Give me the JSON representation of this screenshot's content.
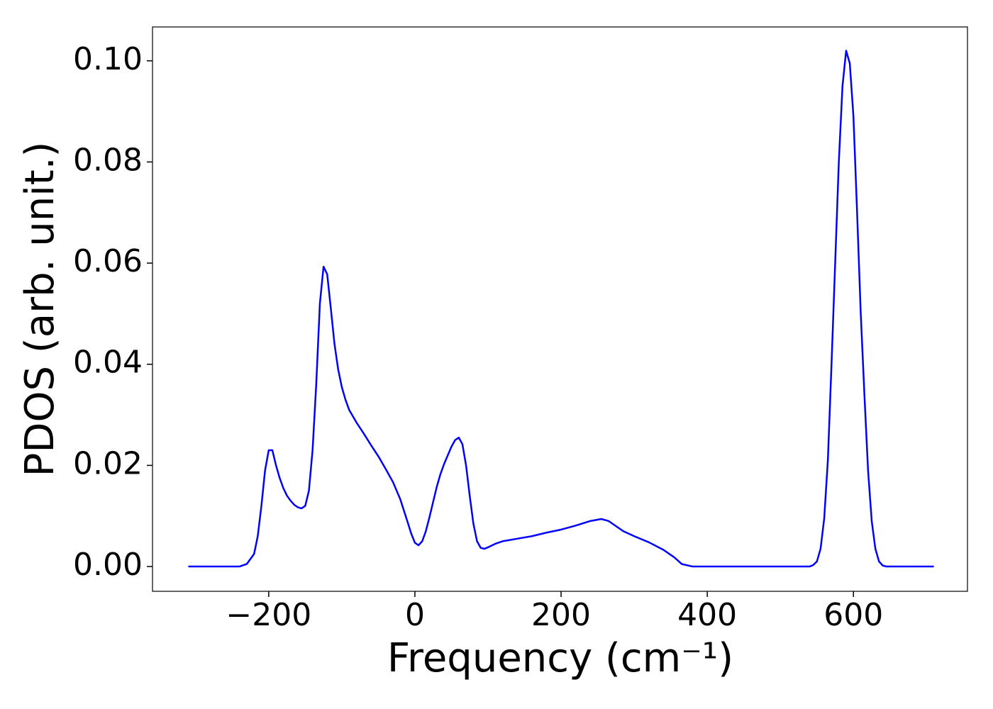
{
  "chart_data": {
    "type": "line",
    "xlabel": "Frequency (cm⁻¹)",
    "ylabel": "PDOS (arb. unit.)",
    "x": [
      -310,
      -240,
      -230,
      -220,
      -215,
      -210,
      -205,
      -200,
      -195,
      -190,
      -185,
      -180,
      -175,
      -170,
      -165,
      -160,
      -155,
      -150,
      -145,
      -140,
      -135,
      -130,
      -125,
      -120,
      -115,
      -110,
      -105,
      -100,
      -95,
      -90,
      -80,
      -70,
      -60,
      -50,
      -40,
      -30,
      -20,
      -10,
      -5,
      0,
      5,
      10,
      15,
      20,
      25,
      30,
      35,
      40,
      45,
      50,
      55,
      60,
      65,
      70,
      75,
      80,
      85,
      90,
      95,
      100,
      110,
      120,
      140,
      160,
      180,
      200,
      220,
      240,
      255,
      265,
      275,
      285,
      300,
      320,
      340,
      355,
      365,
      380,
      540,
      545,
      550,
      555,
      560,
      565,
      570,
      575,
      580,
      585,
      590,
      595,
      600,
      605,
      610,
      615,
      620,
      625,
      630,
      635,
      640,
      645,
      710
    ],
    "series": [
      {
        "name": "PDOS",
        "color": "#0000ff",
        "values": [
          0,
          0,
          0.0005,
          0.0025,
          0.006,
          0.012,
          0.019,
          0.023,
          0.023,
          0.02,
          0.0175,
          0.0155,
          0.014,
          0.013,
          0.0122,
          0.0117,
          0.0115,
          0.012,
          0.015,
          0.023,
          0.036,
          0.052,
          0.0593,
          0.0578,
          0.051,
          0.044,
          0.039,
          0.0355,
          0.033,
          0.031,
          0.0285,
          0.0263,
          0.024,
          0.0218,
          0.0193,
          0.0167,
          0.0133,
          0.0088,
          0.0065,
          0.0047,
          0.0042,
          0.005,
          0.007,
          0.0098,
          0.0128,
          0.0158,
          0.0183,
          0.0203,
          0.022,
          0.0237,
          0.025,
          0.0255,
          0.0242,
          0.02,
          0.014,
          0.0085,
          0.005,
          0.0037,
          0.0035,
          0.0038,
          0.0045,
          0.005,
          0.0055,
          0.006,
          0.0067,
          0.0073,
          0.0081,
          0.009,
          0.0094,
          0.009,
          0.008,
          0.007,
          0.006,
          0.0048,
          0.0033,
          0.0018,
          0.0005,
          0,
          0,
          0.0003,
          0.001,
          0.0035,
          0.0095,
          0.021,
          0.04,
          0.06,
          0.08,
          0.095,
          0.102,
          0.0995,
          0.089,
          0.07,
          0.05,
          0.034,
          0.019,
          0.009,
          0.0035,
          0.001,
          0.0002,
          0,
          0
        ]
      }
    ],
    "xlim": [
      -359,
      756
    ],
    "xticks": [
      {
        "value": -200,
        "label": "−200"
      },
      0,
      200,
      400,
      600
    ],
    "ylim": [
      -0.0049,
      0.1067
    ],
    "yticks": [
      {
        "value": 0,
        "label": "0.00"
      },
      {
        "value": 0.02,
        "label": "0.02"
      },
      {
        "value": 0.04,
        "label": "0.04"
      },
      {
        "value": 0.06,
        "label": "0.06"
      },
      {
        "value": 0.08,
        "label": "0.08"
      },
      {
        "value": 0.1,
        "label": "0.10"
      }
    ],
    "grid": false
  }
}
